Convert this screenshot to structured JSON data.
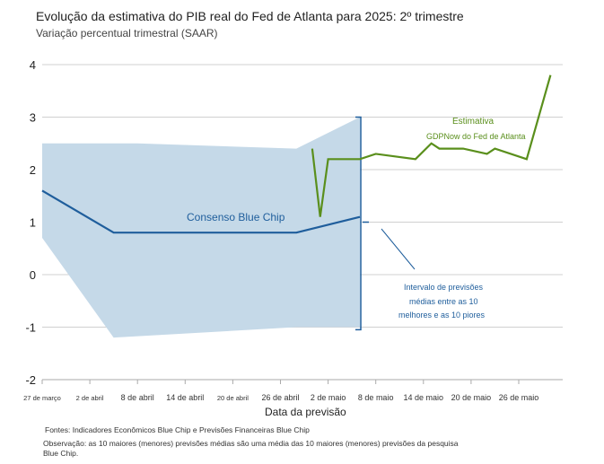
{
  "chart_data": {
    "type": "line",
    "title": "Evolução da estimativa do PIB real do Fed de Atlanta para 2025: 2º trimestre",
    "subtitle": "Variação percentual trimestral (SAAR)",
    "xlabel": "Data da previsão",
    "ylabel": "",
    "ylim": [
      -2,
      4
    ],
    "yticks": [
      "4",
      "3",
      "2",
      "1",
      "0",
      "-1",
      "-2"
    ],
    "xticks": [
      "27 de março",
      "2 de abril",
      "8 de abril",
      "14 de abril",
      "20 de abril",
      "26 de abril",
      "2 de maio",
      "8 de maio",
      "14 de maio",
      "20 de maio",
      "26 de maio"
    ],
    "grid": true,
    "series": [
      {
        "name": "Consenso Blue Chip",
        "color": "#1f5e9c",
        "x": [
          "2025-03-27",
          "2025-04-05",
          "2025-04-28",
          "2025-05-06"
        ],
        "values": [
          1.6,
          0.8,
          0.8,
          1.1
        ]
      },
      {
        "name": "Estimativa GDPNow do Fed de Atlanta",
        "color": "#5a8f1c",
        "x": [
          "2025-04-30",
          "2025-05-01",
          "2025-05-02",
          "2025-05-06",
          "2025-05-08",
          "2025-05-13",
          "2025-05-15",
          "2025-05-16",
          "2025-05-19",
          "2025-05-22",
          "2025-05-23",
          "2025-05-27",
          "2025-05-30"
        ],
        "values": [
          2.4,
          1.1,
          2.2,
          2.2,
          2.3,
          2.2,
          2.5,
          2.4,
          2.4,
          2.3,
          2.4,
          2.2,
          3.8
        ]
      }
    ],
    "band": {
      "name": "Intervalo de previsões médias entre as 10 melhores e as 10 piores",
      "color": "#c5d9e8",
      "upper": {
        "x": [
          "2025-03-27",
          "2025-04-08",
          "2025-04-28",
          "2025-05-06"
        ],
        "values": [
          2.5,
          2.5,
          2.4,
          3.0
        ]
      },
      "lower": {
        "x": [
          "2025-03-27",
          "2025-04-05",
          "2025-04-28",
          "2025-05-06"
        ],
        "values": [
          0.7,
          -1.2,
          -1.0,
          -1.0
        ]
      }
    },
    "annotations": {
      "consensus": "Consenso Blue Chip",
      "gdpnow_1": "Estimativa",
      "gdpnow_2": "GDPNow do Fed de Atlanta",
      "band_1": "Intervalo de previsões",
      "band_2": "médias entre as 10",
      "band_3": "melhores e as 10 piores"
    }
  },
  "footer": {
    "sources": "Fontes: Indicadores Econômicos Blue Chip e Previsões Financeiras Blue Chip",
    "note_1": "Observação: as 10 maiores (menores) previsões médias são uma média das 10 maiores (menores) previsões da pesquisa",
    "note_2": "Blue Chip."
  }
}
